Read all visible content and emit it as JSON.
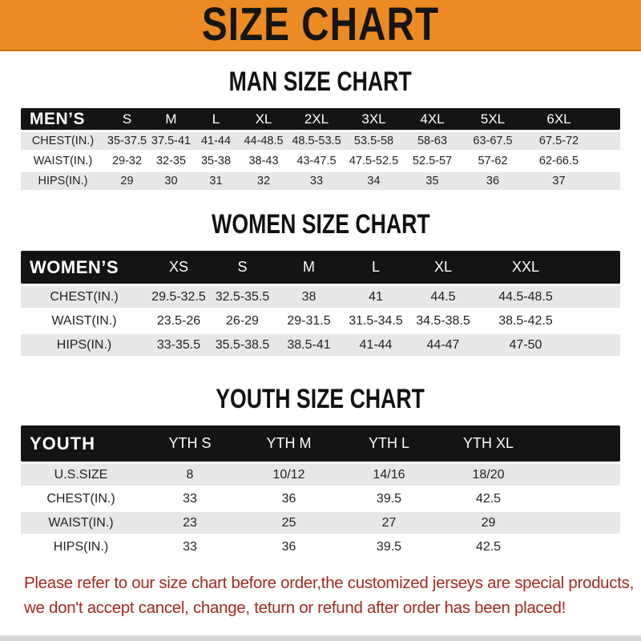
{
  "banner": {
    "title": "SIZE CHART"
  },
  "sections": [
    {
      "title": "MAN SIZE CHART",
      "header_label": "MEN’S",
      "columns": [
        "S",
        "M",
        "L",
        "XL",
        "2XL",
        "3XL",
        "4XL",
        "5XL",
        "6XL"
      ],
      "rows": [
        {
          "label": "CHEST(IN.)",
          "values": [
            "35-37.5",
            "37.5-41",
            "41-44",
            "44-48.5",
            "48.5-53.5",
            "53.5-58",
            "58-63",
            "63-67.5",
            "67.5-72"
          ]
        },
        {
          "label": "WAIST(IN.)",
          "values": [
            "29-32",
            "32-35",
            "35-38",
            "38-43",
            "43-47.5",
            "47.5-52.5",
            "52.5-57",
            "57-62",
            "62-66.5"
          ]
        },
        {
          "label": "HIPS(IN.)",
          "values": [
            "29",
            "30",
            "31",
            "32",
            "33",
            "34",
            "35",
            "36",
            "37"
          ]
        }
      ]
    },
    {
      "title": "WOMEN SIZE CHART",
      "header_label": "WOMEN’S",
      "columns": [
        "XS",
        "S",
        "M",
        "L",
        "XL",
        "XXL"
      ],
      "rows": [
        {
          "label": "CHEST(IN.)",
          "values": [
            "29.5-32.5",
            "32.5-35.5",
            "38",
            "41",
            "44.5",
            "44.5-48.5"
          ]
        },
        {
          "label": "WAIST(IN.)",
          "values": [
            "23.5-26",
            "26-29",
            "29-31.5",
            "31.5-34.5",
            "34.5-38.5",
            "38.5-42.5"
          ]
        },
        {
          "label": "HIPS(IN.)",
          "values": [
            "33-35.5",
            "35.5-38.5",
            "38.5-41",
            "41-44",
            "44-47",
            "47-50"
          ]
        }
      ]
    },
    {
      "title": "YOUTH SIZE CHART",
      "header_label": "YOUTH",
      "columns": [
        "YTH S",
        "YTH M",
        "YTH L",
        "YTH XL"
      ],
      "rows": [
        {
          "label": "U.S.SIZE",
          "values": [
            "8",
            "10/12",
            "14/16",
            "18/20"
          ]
        },
        {
          "label": "CHEST(IN.)",
          "values": [
            "33",
            "36",
            "39.5",
            "42.5"
          ]
        },
        {
          "label": "WAIST(IN.)",
          "values": [
            "23",
            "25",
            "27",
            "29"
          ]
        },
        {
          "label": "HIPS(IN.)",
          "values": [
            "33",
            "36",
            "39.5",
            "42.5"
          ]
        }
      ]
    }
  ],
  "footer": {
    "line1": "Please refer to our size chart before order,the customized jerseys are special products,",
    "line2": "we don't accept cancel, change, teturn or refund after order has been placed!"
  },
  "colors": {
    "banner_orange": "#EC8A23",
    "banner_edge": "#C9731B",
    "header_bar_black": "#141414",
    "row_gray": "#E7E7E7",
    "footer_red": "#9E2A23",
    "bottom_strip_gray": "#D7D7D7"
  }
}
